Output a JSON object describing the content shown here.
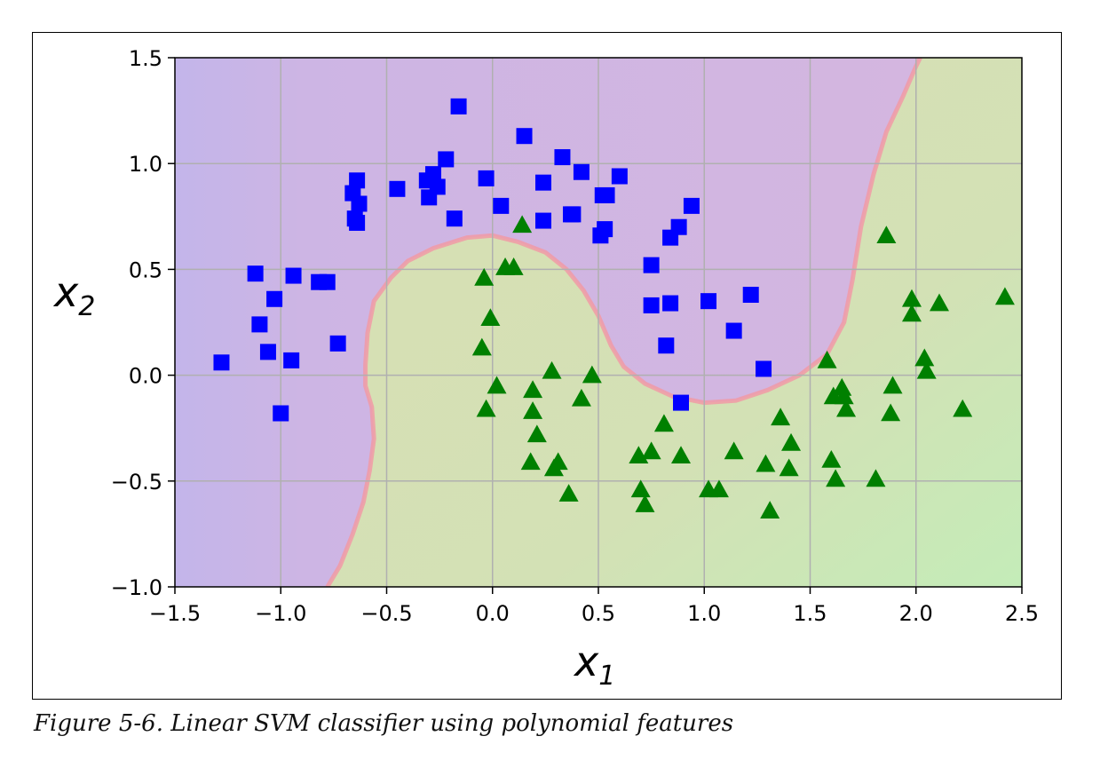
{
  "caption": "Figure 5-6. Linear SVM classifier using polynomial features",
  "chart_data": {
    "type": "scatter",
    "title": "",
    "xlabel": "x",
    "xlabel_sub": "1",
    "ylabel": "x",
    "ylabel_sub": "2",
    "xlim": [
      -1.5,
      2.5
    ],
    "ylim": [
      -1.0,
      1.5
    ],
    "xticks": [
      -1.5,
      -1.0,
      -0.5,
      0.0,
      0.5,
      1.0,
      1.5,
      2.0,
      2.5
    ],
    "xtick_labels": [
      "−1.5",
      "−1.0",
      "−0.5",
      "0.0",
      "0.5",
      "1.0",
      "1.5",
      "2.0",
      "2.5"
    ],
    "yticks": [
      -1.0,
      -0.5,
      0.0,
      0.5,
      1.0,
      1.5
    ],
    "ytick_labels": [
      "−1.0",
      "−0.5",
      "0.0",
      "0.5",
      "1.0",
      "1.5"
    ],
    "grid": true,
    "colors": {
      "class0": "#0000ff",
      "class1": "#008000",
      "region0": "#d3b6e0",
      "region0_dark": "#c6b3e8",
      "region1": "#d8dfb6",
      "region1_light": "#c5ecb8",
      "boundary": "#f19aa6",
      "grid": "#b0b0b0"
    },
    "decision_boundary": [
      [
        -0.78,
        -1.0
      ],
      [
        -0.72,
        -0.9
      ],
      [
        -0.66,
        -0.75
      ],
      [
        -0.61,
        -0.6
      ],
      [
        -0.58,
        -0.45
      ],
      [
        -0.56,
        -0.3
      ],
      [
        -0.57,
        -0.15
      ],
      [
        -0.6,
        -0.05
      ],
      [
        -0.6,
        0.05
      ],
      [
        -0.59,
        0.2
      ],
      [
        -0.56,
        0.35
      ],
      [
        -0.48,
        0.46
      ],
      [
        -0.4,
        0.54
      ],
      [
        -0.28,
        0.6
      ],
      [
        -0.12,
        0.65
      ],
      [
        0.0,
        0.66
      ],
      [
        0.12,
        0.63
      ],
      [
        0.25,
        0.58
      ],
      [
        0.35,
        0.5
      ],
      [
        0.43,
        0.4
      ],
      [
        0.5,
        0.28
      ],
      [
        0.56,
        0.14
      ],
      [
        0.62,
        0.04
      ],
      [
        0.72,
        -0.04
      ],
      [
        0.85,
        -0.1
      ],
      [
        1.0,
        -0.13
      ],
      [
        1.15,
        -0.12
      ],
      [
        1.3,
        -0.07
      ],
      [
        1.45,
        0.0
      ],
      [
        1.58,
        0.1
      ],
      [
        1.66,
        0.25
      ],
      [
        1.7,
        0.45
      ],
      [
        1.74,
        0.7
      ],
      [
        1.8,
        0.95
      ],
      [
        1.86,
        1.15
      ],
      [
        1.94,
        1.32
      ],
      [
        2.0,
        1.46
      ],
      [
        2.02,
        1.5
      ]
    ],
    "series": [
      {
        "class": "0",
        "marker": "square",
        "points": [
          [
            -1.28,
            0.06
          ],
          [
            -1.12,
            0.48
          ],
          [
            -1.1,
            0.24
          ],
          [
            -1.06,
            0.11
          ],
          [
            -1.03,
            0.36
          ],
          [
            -1.0,
            -0.18
          ],
          [
            -0.95,
            0.07
          ],
          [
            -0.94,
            0.47
          ],
          [
            -0.82,
            0.44
          ],
          [
            -0.78,
            0.44
          ],
          [
            -0.73,
            0.15
          ],
          [
            -0.66,
            0.86
          ],
          [
            -0.64,
            0.92
          ],
          [
            -0.63,
            0.81
          ],
          [
            -0.65,
            0.74
          ],
          [
            -0.64,
            0.72
          ],
          [
            -0.45,
            0.88
          ],
          [
            -0.31,
            0.92
          ],
          [
            -0.3,
            0.84
          ],
          [
            -0.28,
            0.95
          ],
          [
            -0.26,
            0.89
          ],
          [
            -0.22,
            1.02
          ],
          [
            -0.18,
            0.74
          ],
          [
            -0.16,
            1.27
          ],
          [
            -0.03,
            0.93
          ],
          [
            0.04,
            0.8
          ],
          [
            0.15,
            1.13
          ],
          [
            0.24,
            0.91
          ],
          [
            0.24,
            0.73
          ],
          [
            0.33,
            1.03
          ],
          [
            0.37,
            0.76
          ],
          [
            0.38,
            0.76
          ],
          [
            0.42,
            0.96
          ],
          [
            0.51,
            0.66
          ],
          [
            0.53,
            0.69
          ],
          [
            0.52,
            0.85
          ],
          [
            0.54,
            0.85
          ],
          [
            0.6,
            0.94
          ],
          [
            0.75,
            0.52
          ],
          [
            0.75,
            0.33
          ],
          [
            0.82,
            0.14
          ],
          [
            0.84,
            0.34
          ],
          [
            0.84,
            0.65
          ],
          [
            0.88,
            0.7
          ],
          [
            0.89,
            -0.13
          ],
          [
            0.94,
            0.8
          ],
          [
            1.02,
            0.35
          ],
          [
            1.14,
            0.21
          ],
          [
            1.22,
            0.38
          ],
          [
            1.28,
            0.03
          ]
        ]
      },
      {
        "class": "1",
        "marker": "triangle",
        "points": [
          [
            -0.05,
            0.13
          ],
          [
            -0.04,
            0.46
          ],
          [
            -0.03,
            -0.16
          ],
          [
            -0.01,
            0.27
          ],
          [
            0.02,
            -0.05
          ],
          [
            0.06,
            0.51
          ],
          [
            0.1,
            0.51
          ],
          [
            0.14,
            0.71
          ],
          [
            0.18,
            -0.41
          ],
          [
            0.19,
            -0.17
          ],
          [
            0.19,
            -0.07
          ],
          [
            0.21,
            -0.28
          ],
          [
            0.28,
            0.02
          ],
          [
            0.29,
            -0.44
          ],
          [
            0.31,
            -0.41
          ],
          [
            0.36,
            -0.56
          ],
          [
            0.42,
            -0.11
          ],
          [
            0.47,
            0.0
          ],
          [
            0.69,
            -0.38
          ],
          [
            0.7,
            -0.54
          ],
          [
            0.72,
            -0.61
          ],
          [
            0.75,
            -0.36
          ],
          [
            0.81,
            -0.23
          ],
          [
            0.89,
            -0.38
          ],
          [
            1.02,
            -0.54
          ],
          [
            1.07,
            -0.54
          ],
          [
            1.14,
            -0.36
          ],
          [
            1.29,
            -0.42
          ],
          [
            1.31,
            -0.64
          ],
          [
            1.36,
            -0.2
          ],
          [
            1.4,
            -0.44
          ],
          [
            1.41,
            -0.32
          ],
          [
            1.58,
            0.07
          ],
          [
            1.6,
            -0.4
          ],
          [
            1.61,
            -0.1
          ],
          [
            1.62,
            -0.49
          ],
          [
            1.65,
            -0.06
          ],
          [
            1.66,
            -0.1
          ],
          [
            1.67,
            -0.16
          ],
          [
            1.81,
            -0.49
          ],
          [
            1.86,
            0.66
          ],
          [
            1.88,
            -0.18
          ],
          [
            1.89,
            -0.05
          ],
          [
            1.98,
            0.36
          ],
          [
            1.98,
            0.29
          ],
          [
            2.04,
            0.08
          ],
          [
            2.05,
            0.02
          ],
          [
            2.11,
            0.34
          ],
          [
            2.22,
            -0.16
          ],
          [
            2.42,
            0.37
          ]
        ]
      }
    ]
  }
}
